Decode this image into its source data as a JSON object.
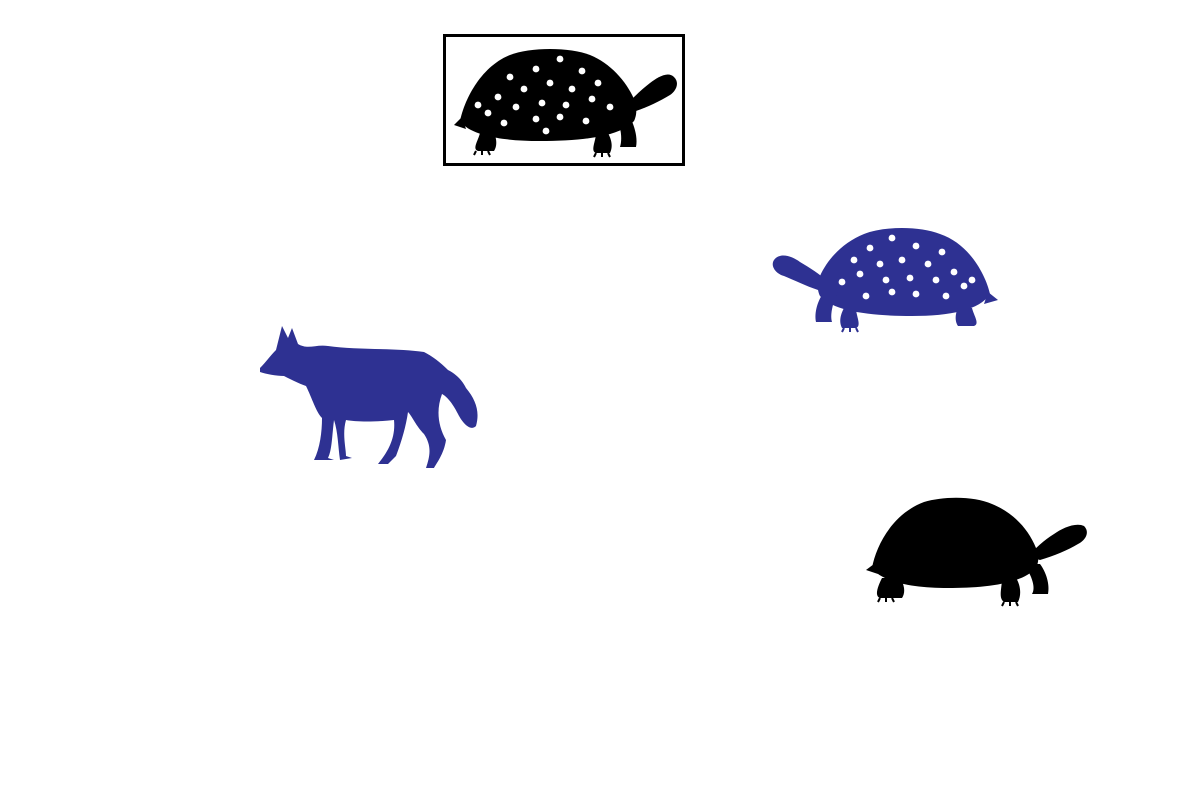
{
  "task": {
    "target": {
      "animal": "tortoise",
      "color": "#000000",
      "pattern": "dotted",
      "facing": "right"
    }
  },
  "scene": {
    "background": "#ffffff",
    "pieces": [
      {
        "id": "tortoise-blue-dotted",
        "animal": "tortoise",
        "color": "#2e3192",
        "pattern": "dotted",
        "facing": "left"
      },
      {
        "id": "wolf-blue",
        "animal": "wolf",
        "color": "#2e3192",
        "pattern": "plain",
        "facing": "left"
      },
      {
        "id": "tortoise-black-plain",
        "animal": "tortoise",
        "color": "#000000",
        "pattern": "plain",
        "facing": "right"
      }
    ]
  },
  "colors": {
    "frame": "#000000",
    "dots": "#ffffff"
  }
}
